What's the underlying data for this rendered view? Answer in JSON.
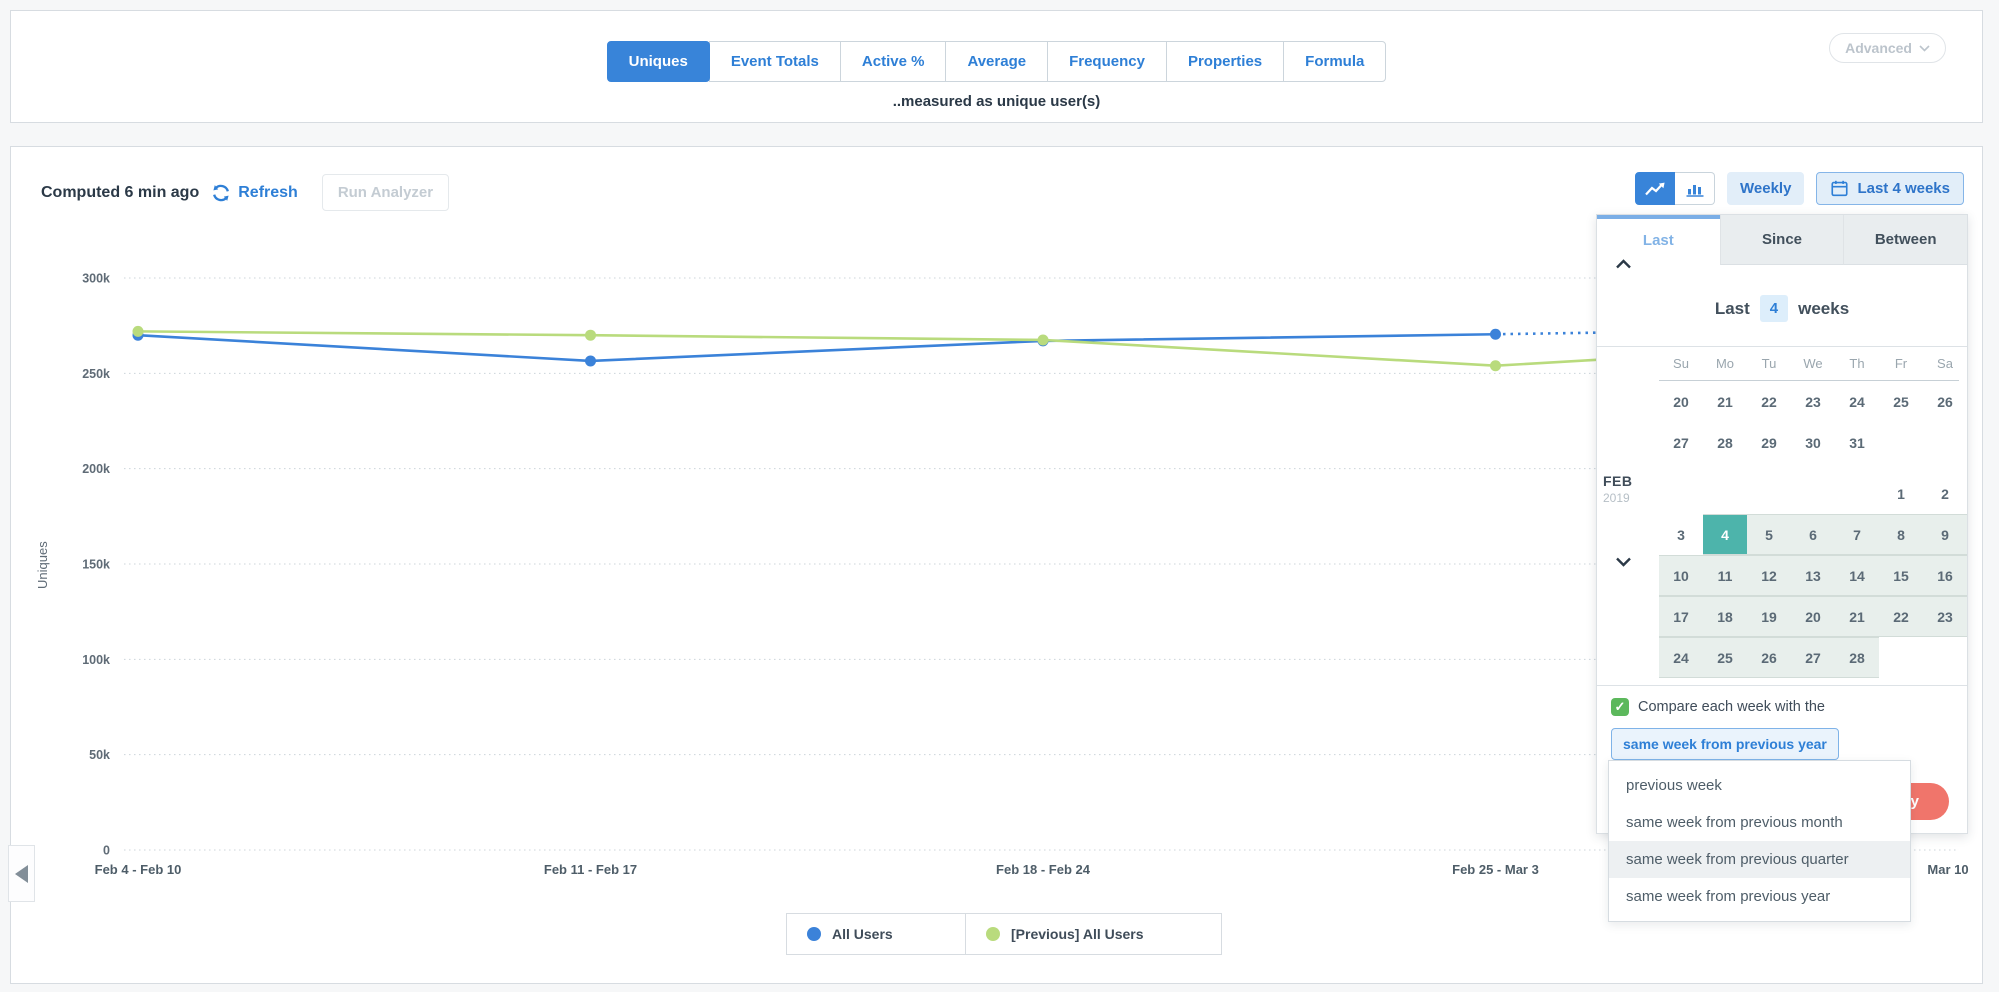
{
  "colors": {
    "brand_blue": "#3884d9",
    "link_blue": "#2e7fd6",
    "navy_text": "#2b3947",
    "teal_selected_day": "#4db4ab",
    "checkbox_green": "#5cb85c",
    "apply_salmon": "#f0756b",
    "light_blue_bg": "#e2eef9",
    "week_highlight": "#e8efec"
  },
  "metric_tabs": [
    {
      "label": "Uniques",
      "active": true
    },
    {
      "label": "Event Totals",
      "active": false
    },
    {
      "label": "Active %",
      "active": false
    },
    {
      "label": "Average",
      "active": false
    },
    {
      "label": "Frequency",
      "active": false
    },
    {
      "label": "Properties",
      "active": false
    },
    {
      "label": "Formula",
      "active": false
    }
  ],
  "measured_note": "..measured as unique user(s)",
  "advanced": {
    "label": "Advanced"
  },
  "toolbar": {
    "computed": "Computed 6 min ago",
    "refresh_label": "Refresh",
    "run_analyzer_label": "Run Analyzer",
    "interval_label": "Weekly",
    "range_label": "Last 4 weeks"
  },
  "chart_data": {
    "type": "line",
    "title": "",
    "ylabel": "Uniques",
    "xlabel": "",
    "ylim": [
      0,
      300000
    ],
    "grid": "dotted-horizontal",
    "y_ticks": [
      "300k",
      "250k",
      "200k",
      "150k",
      "100k",
      "50k",
      "0"
    ],
    "x_labels": [
      "Feb 4 - Feb 10",
      "Feb 11 - Feb 17",
      "Feb 18 - Feb 24",
      "Feb 25 - Mar 3",
      "Mar 10"
    ],
    "series": [
      {
        "name": "All Users",
        "color": "#3b82d9",
        "values": [
          270000,
          256500,
          267000,
          270500
        ],
        "projection": "dotted",
        "projection_end_value": 272000
      },
      {
        "name": "[Previous] All Users",
        "color": "#b9db7d",
        "values": [
          272000,
          270000,
          267500,
          254000
        ],
        "projection": "solid",
        "projection_end_value": 259500
      }
    ],
    "legend_position": "bottom-center"
  },
  "legend": [
    {
      "label": "All Users",
      "color": "#3b82d9"
    },
    {
      "label": "[Previous] All Users",
      "color": "#b9db7d"
    }
  ],
  "date_picker": {
    "tabs": [
      {
        "label": "Last",
        "active": true
      },
      {
        "label": "Since",
        "active": false
      },
      {
        "label": "Between",
        "active": false
      }
    ],
    "last_row": {
      "prefix": "Last",
      "value": "4",
      "suffix": "weeks"
    },
    "calendar": {
      "day_headers": [
        "Su",
        "Mo",
        "Tu",
        "We",
        "Th",
        "Fr",
        "Sa"
      ],
      "rows": [
        {
          "month": null,
          "cells": [
            {
              "d": "20"
            },
            {
              "d": "21"
            },
            {
              "d": "22"
            },
            {
              "d": "23"
            },
            {
              "d": "24"
            },
            {
              "d": "25"
            },
            {
              "d": "26"
            }
          ]
        },
        {
          "month": null,
          "cells": [
            {
              "d": "27"
            },
            {
              "d": "28"
            },
            {
              "d": "29"
            },
            {
              "d": "30"
            },
            {
              "d": "31"
            },
            null,
            null
          ]
        },
        {
          "month": {
            "name": "FEB",
            "year": "2019"
          },
          "cells": [
            null,
            null,
            null,
            null,
            null,
            {
              "d": "1"
            },
            {
              "d": "2"
            }
          ]
        },
        {
          "month": null,
          "cells": [
            {
              "d": "3"
            },
            {
              "d": "4",
              "sel": true,
              "hl": true
            },
            {
              "d": "5",
              "hl": true
            },
            {
              "d": "6",
              "hl": true
            },
            {
              "d": "7",
              "hl": true
            },
            {
              "d": "8",
              "hl": true
            },
            {
              "d": "9",
              "hl": true
            }
          ]
        },
        {
          "month": null,
          "cells": [
            {
              "d": "10",
              "hl": true
            },
            {
              "d": "11",
              "hl": true
            },
            {
              "d": "12",
              "hl": true
            },
            {
              "d": "13",
              "hl": true
            },
            {
              "d": "14",
              "hl": true
            },
            {
              "d": "15",
              "hl": true
            },
            {
              "d": "16",
              "hl": true
            }
          ]
        },
        {
          "month": null,
          "cells": [
            {
              "d": "17",
              "hl": true
            },
            {
              "d": "18",
              "hl": true
            },
            {
              "d": "19",
              "hl": true
            },
            {
              "d": "20",
              "hl": true
            },
            {
              "d": "21",
              "hl": true
            },
            {
              "d": "22",
              "hl": true
            },
            {
              "d": "23",
              "hl": true
            }
          ]
        },
        {
          "month": null,
          "cells": [
            {
              "d": "24",
              "hl": true
            },
            {
              "d": "25",
              "hl": true
            },
            {
              "d": "26",
              "hl": true
            },
            {
              "d": "27",
              "hl": true
            },
            {
              "d": "28",
              "hl": true
            },
            null,
            null
          ]
        }
      ]
    },
    "compare_label": "Compare each week with the",
    "compare_checked": true,
    "compare_value": "same week from previous year",
    "apply_label": "Apply"
  },
  "compare_dropdown": {
    "options": [
      {
        "label": "previous week",
        "highlighted": false
      },
      {
        "label": "same week from previous month",
        "highlighted": false
      },
      {
        "label": "same week from previous quarter",
        "highlighted": true
      },
      {
        "label": "same week from previous year",
        "highlighted": false
      }
    ]
  }
}
